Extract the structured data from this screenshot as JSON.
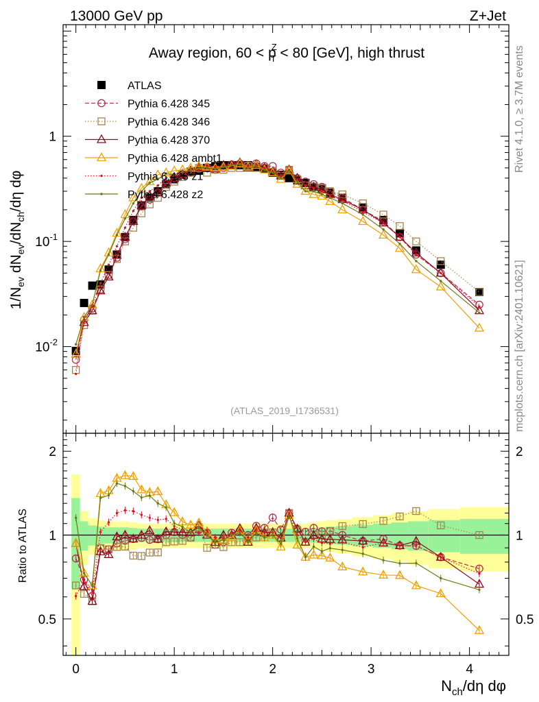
{
  "chart_data": {
    "type": "scatter",
    "header_left": "13000 GeV pp",
    "header_right": "Z+Jet",
    "title": "Away region, 60 < pTZ < 80 [GeV], high thrust",
    "title_parts": {
      "pre": "Away region, 60 < p",
      "sup": "Z",
      "sub": "T",
      "post": " < 80 [GeV], high thrust"
    },
    "analysis_label": "(ATLAS_2019_I1736531)",
    "side_label_top": "Rivet 4.1.0, ≥ 3.7M events",
    "side_label_bottom": "mcplots.cern.ch [arXiv:2401.10621]",
    "ylabel_top": "1/Nev dNev/dNch/dη dφ",
    "ylabel_top_parts": {
      "a": "1/N",
      "a_sub": "ev",
      "b": " dN",
      "b_sub": "ev",
      "c": "/dN",
      "c_sub": "ch",
      "d": "/dη dφ"
    },
    "ylabel_bottom": "Ratio to ATLAS",
    "xlabel": "Nch/dη dφ",
    "xlabel_parts": {
      "a": "N",
      "a_sub": "ch",
      "b": "/dη dφ"
    },
    "xlim": [
      -0.13,
      4.4
    ],
    "ylim_top": [
      0.0015,
      11.5
    ],
    "ylim_bottom": [
      0.37,
      2.32
    ],
    "x_ticks": [
      "0",
      "1",
      "2",
      "3",
      "4"
    ],
    "y_ticks_top": [
      "10^-2",
      "10^-1",
      "1"
    ],
    "y_ticks_bottom": [
      "0.5",
      "1",
      "2"
    ],
    "x": [
      0.0,
      0.0833,
      0.1667,
      0.25,
      0.3333,
      0.4167,
      0.5,
      0.5833,
      0.6667,
      0.75,
      0.8333,
      0.9167,
      1.0,
      1.0833,
      1.1667,
      1.25,
      1.3333,
      1.4167,
      1.5,
      1.5833,
      1.6667,
      1.75,
      1.8333,
      1.9167,
      2.0,
      2.0833,
      2.1667,
      2.25,
      2.3333,
      2.4167,
      2.5,
      2.5833,
      2.7083,
      2.9167,
      3.125,
      3.2917,
      3.4583,
      3.7083,
      4.1
    ],
    "series": [
      {
        "name": "ATLAS",
        "color": "#000000",
        "marker": "filled-square",
        "line": "none",
        "values": [
          0.0091,
          0.026,
          0.038,
          0.039,
          0.054,
          0.075,
          0.11,
          0.16,
          0.22,
          0.26,
          0.3,
          0.35,
          0.39,
          0.43,
          0.46,
          0.47,
          0.5,
          0.52,
          0.53,
          0.53,
          0.53,
          0.53,
          0.51,
          0.49,
          0.45,
          0.43,
          0.4,
          0.38,
          0.36,
          0.33,
          0.32,
          0.29,
          0.26,
          0.21,
          0.16,
          0.12,
          0.082,
          0.06,
          0.033
        ]
      },
      {
        "name": "Pythia 6.428 345",
        "color": "#b0304f",
        "marker": "open-circle",
        "line": "dashed",
        "values": [
          0.0075,
          0.018,
          0.023,
          0.035,
          0.048,
          0.07,
          0.105,
          0.155,
          0.215,
          0.25,
          0.29,
          0.35,
          0.4,
          0.43,
          0.45,
          0.49,
          0.51,
          0.48,
          0.5,
          0.54,
          0.55,
          0.53,
          0.55,
          0.52,
          0.52,
          0.45,
          0.48,
          0.4,
          0.37,
          0.35,
          0.33,
          0.3,
          0.26,
          0.2,
          0.155,
          0.11,
          0.075,
          0.05,
          0.025
        ]
      },
      {
        "name": "Pythia 6.428 346",
        "color": "#a8824a",
        "marker": "open-square",
        "line": "dotted",
        "values": [
          0.006,
          0.016,
          0.022,
          0.035,
          0.048,
          0.068,
          0.1,
          0.135,
          0.185,
          0.225,
          0.26,
          0.33,
          0.37,
          0.41,
          0.45,
          0.5,
          0.45,
          0.48,
          0.48,
          0.5,
          0.5,
          0.52,
          0.5,
          0.5,
          0.46,
          0.42,
          0.48,
          0.39,
          0.34,
          0.33,
          0.32,
          0.3,
          0.28,
          0.23,
          0.18,
          0.14,
          0.1,
          0.065,
          0.033
        ]
      },
      {
        "name": "Pythia 6.428 370",
        "color": "#8b0a1e",
        "marker": "open-triangle",
        "line": "solid",
        "values": [
          0.0085,
          0.017,
          0.022,
          0.034,
          0.046,
          0.074,
          0.11,
          0.155,
          0.22,
          0.27,
          0.29,
          0.36,
          0.4,
          0.44,
          0.47,
          0.51,
          0.5,
          0.49,
          0.53,
          0.53,
          0.56,
          0.5,
          0.54,
          0.5,
          0.46,
          0.42,
          0.48,
          0.4,
          0.34,
          0.33,
          0.31,
          0.28,
          0.25,
          0.2,
          0.15,
          0.11,
          0.078,
          0.05,
          0.022
        ]
      },
      {
        "name": "Pythia 6.428 ambt1",
        "color": "#f0a000",
        "marker": "open-triangle",
        "line": "solid",
        "values": [
          0.0085,
          0.019,
          0.025,
          0.055,
          0.078,
          0.12,
          0.18,
          0.26,
          0.32,
          0.37,
          0.43,
          0.45,
          0.47,
          0.48,
          0.5,
          0.52,
          0.51,
          0.5,
          0.51,
          0.52,
          0.55,
          0.51,
          0.53,
          0.48,
          0.45,
          0.39,
          0.47,
          0.35,
          0.3,
          0.28,
          0.27,
          0.24,
          0.2,
          0.155,
          0.115,
          0.086,
          0.054,
          0.037,
          0.015
        ]
      },
      {
        "name": "Pythia 6.428 z1",
        "color": "#e0101c",
        "marker": "small-dot",
        "line": "dotted",
        "values": [
          0.0055,
          0.018,
          0.024,
          0.04,
          0.06,
          0.09,
          0.135,
          0.195,
          0.26,
          0.3,
          0.34,
          0.4,
          0.42,
          0.45,
          0.47,
          0.48,
          0.52,
          0.51,
          0.52,
          0.54,
          0.55,
          0.52,
          0.53,
          0.5,
          0.46,
          0.42,
          0.48,
          0.38,
          0.34,
          0.32,
          0.3,
          0.27,
          0.245,
          0.19,
          0.15,
          0.11,
          0.075,
          0.05,
          0.024
        ]
      },
      {
        "name": "Pythia 6.428 z2",
        "color": "#6b7a10",
        "marker": "small-dot",
        "line": "solid",
        "values": [
          0.0105,
          0.019,
          0.025,
          0.053,
          0.075,
          0.115,
          0.165,
          0.23,
          0.3,
          0.36,
          0.39,
          0.44,
          0.43,
          0.46,
          0.47,
          0.5,
          0.5,
          0.49,
          0.51,
          0.53,
          0.54,
          0.5,
          0.52,
          0.48,
          0.45,
          0.4,
          0.47,
          0.37,
          0.3,
          0.3,
          0.28,
          0.26,
          0.23,
          0.18,
          0.13,
          0.095,
          0.065,
          0.042,
          0.021
        ]
      }
    ],
    "data_uncertainty_band_upper": [
      1.65,
      1.22,
      1.15,
      1.13,
      1.12,
      1.12,
      1.12,
      1.11,
      1.1,
      1.1,
      1.1,
      1.1,
      1.1,
      1.1,
      1.1,
      1.1,
      1.1,
      1.1,
      1.1,
      1.1,
      1.1,
      1.1,
      1.1,
      1.1,
      1.1,
      1.1,
      1.1,
      1.1,
      1.1,
      1.11,
      1.12,
      1.13,
      1.14,
      1.16,
      1.18,
      1.2,
      1.22,
      1.24,
      1.26
    ],
    "data_uncertainty_band_lower": [
      0.35,
      0.78,
      0.85,
      0.87,
      0.88,
      0.88,
      0.88,
      0.89,
      0.9,
      0.9,
      0.9,
      0.9,
      0.9,
      0.9,
      0.9,
      0.9,
      0.9,
      0.9,
      0.9,
      0.9,
      0.9,
      0.9,
      0.9,
      0.9,
      0.9,
      0.9,
      0.9,
      0.9,
      0.9,
      0.89,
      0.88,
      0.87,
      0.86,
      0.84,
      0.82,
      0.8,
      0.78,
      0.76,
      0.74
    ]
  }
}
